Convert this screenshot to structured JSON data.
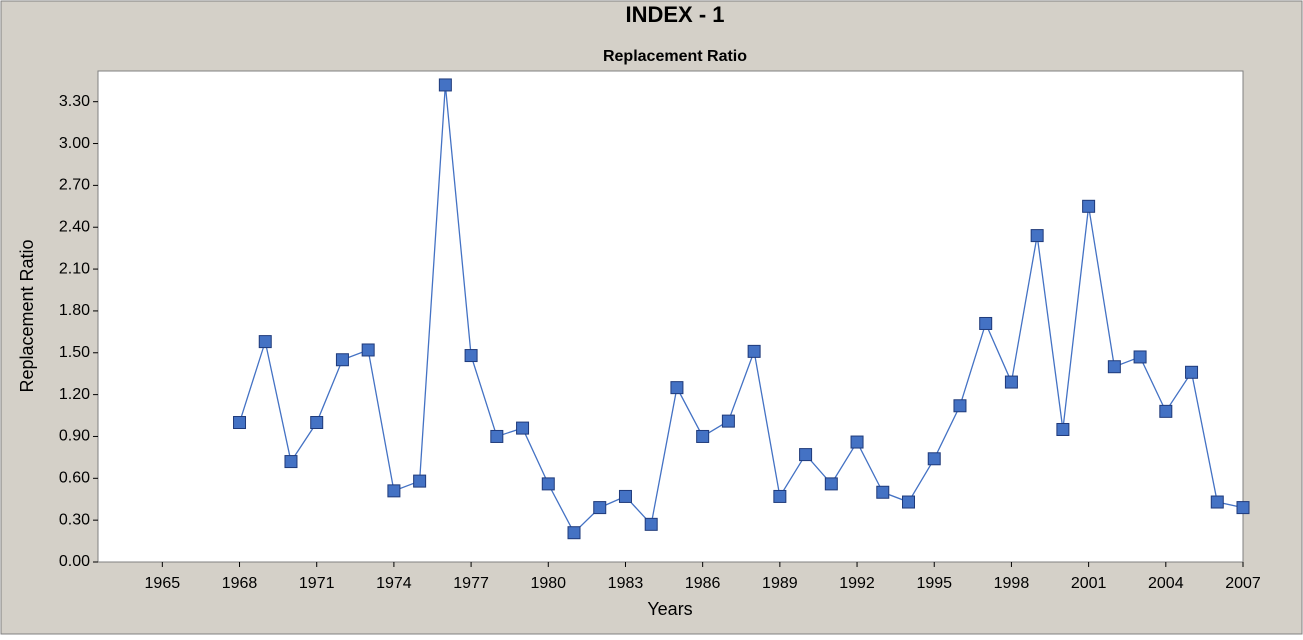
{
  "chart_data": {
    "type": "line",
    "title": "INDEX - 1",
    "subtitle": "Replacement Ratio",
    "x_label": "Years",
    "y_label": "Replacement Ratio",
    "x": [
      1968,
      1969,
      1970,
      1971,
      1972,
      1973,
      1974,
      1975,
      1976,
      1977,
      1978,
      1979,
      1980,
      1981,
      1982,
      1983,
      1984,
      1985,
      1986,
      1987,
      1988,
      1989,
      1990,
      1991,
      1992,
      1993,
      1994,
      1995,
      1996,
      1997,
      1998,
      1999,
      2000,
      2001,
      2002,
      2003,
      2004,
      2005,
      2006,
      2007
    ],
    "series": [
      {
        "name": "Replacement Ratio",
        "color": "#4472c4",
        "values": [
          1.0,
          1.58,
          0.72,
          1.0,
          1.45,
          1.52,
          0.51,
          0.58,
          3.42,
          1.48,
          0.9,
          0.96,
          0.56,
          0.21,
          0.39,
          0.47,
          0.27,
          1.25,
          0.9,
          1.01,
          1.51,
          0.47,
          0.77,
          0.56,
          0.86,
          0.5,
          0.43,
          0.74,
          1.12,
          1.71,
          1.29,
          2.34,
          0.95,
          2.55,
          1.4,
          1.47,
          1.08,
          1.36,
          0.43,
          0.39
        ]
      }
    ],
    "xlim": [
      1962.5,
      2007
    ],
    "xticks": [
      1965,
      1968,
      1971,
      1974,
      1977,
      1980,
      1983,
      1986,
      1989,
      1992,
      1995,
      1998,
      2001,
      2004,
      2007
    ],
    "ylim": [
      0,
      3.52
    ],
    "yticks": [
      {
        "value": 0,
        "label": "0.00"
      },
      {
        "value": 0.3,
        "label": "0.30"
      },
      {
        "value": 0.6,
        "label": "0.60"
      },
      {
        "value": 0.9,
        "label": "0.90"
      },
      {
        "value": 1.2,
        "label": "1.20"
      },
      {
        "value": 1.5,
        "label": "1.50"
      },
      {
        "value": 1.8,
        "label": "1.80"
      },
      {
        "value": 2.1,
        "label": "2.10"
      },
      {
        "value": 2.4,
        "label": "2.40"
      },
      {
        "value": 2.7,
        "label": "2.70"
      },
      {
        "value": 3.0,
        "label": "3.00"
      },
      {
        "value": 3.3,
        "label": "3.30"
      }
    ],
    "grid": false
  }
}
